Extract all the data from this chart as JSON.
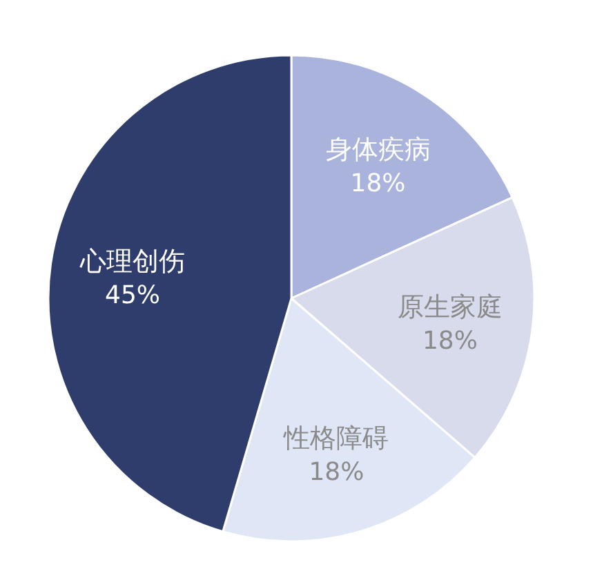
{
  "chart_data": {
    "type": "pie",
    "categories": [
      "身体疾病",
      "原生家庭",
      "性格障碍",
      "心理创伤"
    ],
    "values": [
      18,
      18,
      18,
      45
    ],
    "colors": [
      "#aab3db",
      "#d8dbec",
      "#dfe7f6",
      "#2f3d6c"
    ],
    "value_labels": [
      "18%",
      "18%",
      "18%",
      "45%"
    ]
  }
}
